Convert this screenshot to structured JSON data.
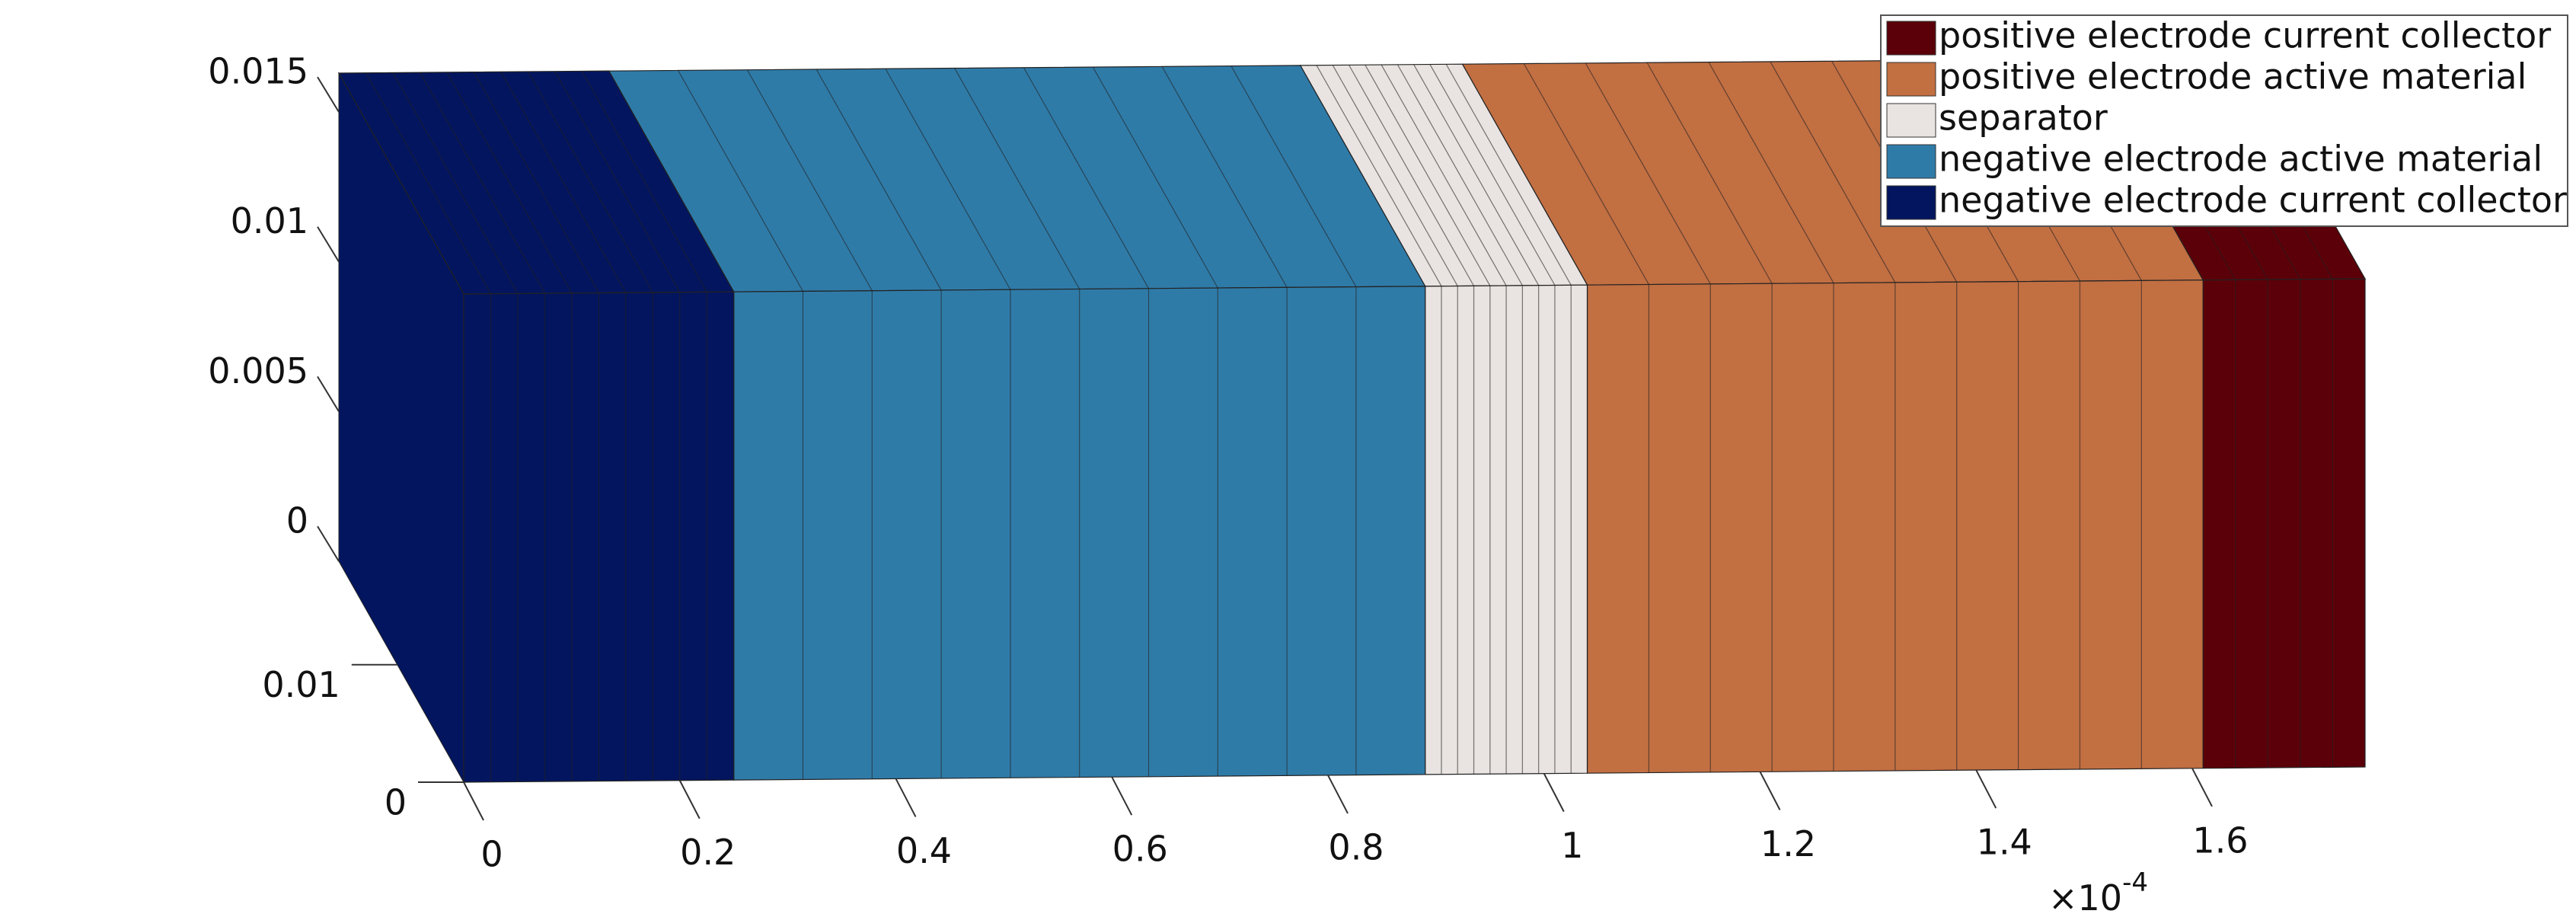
{
  "chart_data": {
    "type": "layers3d",
    "layers": [
      {
        "name": "positive electrode current collector",
        "color": "#5b0008",
        "x_range": [
          1.61,
          1.76
        ],
        "cells": 5
      },
      {
        "name": "positive electrode active material",
        "color": "#c26f42",
        "x_range": [
          1.04,
          1.61
        ],
        "cells": 10
      },
      {
        "name": "separator",
        "color": "#e9e4e1",
        "x_range": [
          0.89,
          1.04
        ],
        "cells": 10
      },
      {
        "name": "negative electrode active material",
        "color": "#2f7ba8",
        "x_range": [
          0.25,
          0.89
        ],
        "cells": 10
      },
      {
        "name": "negative electrode current collector",
        "color": "#03155e",
        "x_range": [
          0,
          0.25
        ],
        "cells": 10
      }
    ],
    "xlim": [
      0,
      1.76
    ],
    "xticks": [
      0,
      0.2,
      0.4,
      0.6,
      0.8,
      1,
      1.2,
      1.4,
      1.6
    ],
    "ylim": [
      0,
      0.0188
    ],
    "yticks": [
      0,
      0.01
    ],
    "zlim": [
      0,
      0.0163
    ],
    "zticks": [
      0,
      0.005,
      0.01,
      0.015
    ],
    "x_multiplier": {
      "base": "×10",
      "exponent": "-4"
    }
  }
}
